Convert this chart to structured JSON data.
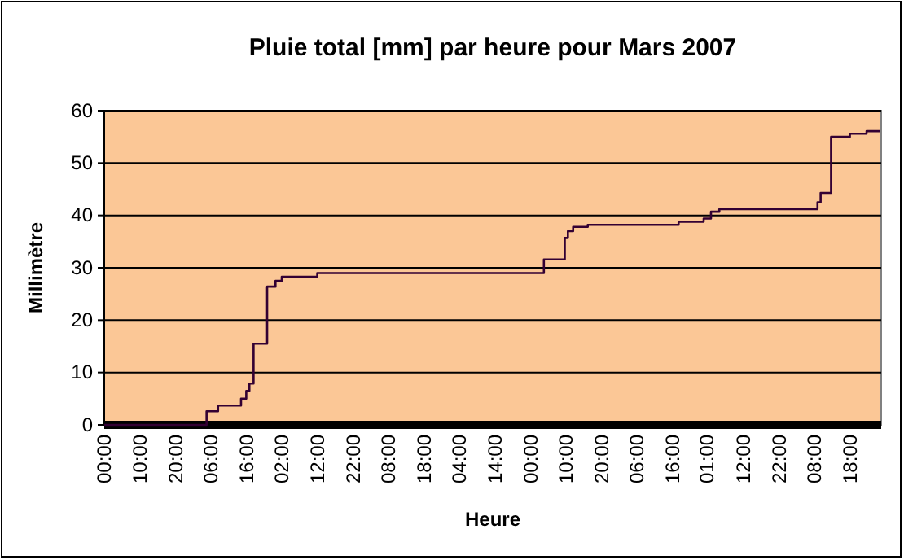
{
  "chart_data": {
    "type": "step",
    "title": "Pluie total [mm] par heure pour Mars 2007",
    "xlabel": "Heure",
    "ylabel": "Millimètre",
    "x": [
      "2007-03-01T00:00",
      "2007-03-05T02:00",
      "2007-03-05T13:00",
      "2007-03-06T11:00",
      "2007-03-06T16:00",
      "2007-03-06T19:00",
      "2007-03-06T23:00",
      "2007-03-07T12:00",
      "2007-03-07T20:00",
      "2007-03-08T02:00",
      "2007-03-09T12:00",
      "2007-03-18T13:00",
      "2007-03-19T09:00",
      "2007-03-19T12:00",
      "2007-03-19T17:00",
      "2007-03-20T07:00",
      "2007-03-23T22:00",
      "2007-03-24T22:00",
      "2007-03-25T05:00",
      "2007-03-25T13:00",
      "2007-03-29T11:00",
      "2007-03-29T14:00",
      "2007-03-30T00:00",
      "2007-03-30T18:00",
      "2007-03-31T10:00",
      "2007-03-31T23:00"
    ],
    "series": [
      {
        "color": "#330033",
        "values": [
          0,
          2.6,
          3.7,
          5,
          6.5,
          7.9,
          15.5,
          26.4,
          27.5,
          28.3,
          29,
          31.6,
          35.7,
          37,
          37.8,
          38.2,
          38.8,
          39.4,
          40.7,
          41.2,
          42.5,
          44.3,
          55,
          55.6,
          56.1,
          56.1
        ]
      }
    ],
    "xlim": [
      "2007-03-01T00:00",
      "2007-04-01T00:00"
    ],
    "xticks": [
      {
        "value": "2007-03-01T00:00",
        "label": "00:00"
      },
      {
        "value": "2007-03-02T10:00",
        "label": "10:00"
      },
      {
        "value": "2007-03-03T20:00",
        "label": "20:00"
      },
      {
        "value": "2007-03-05T06:00",
        "label": "06:00"
      },
      {
        "value": "2007-03-06T16:00",
        "label": "16:00"
      },
      {
        "value": "2007-03-08T02:00",
        "label": "02:00"
      },
      {
        "value": "2007-03-09T12:00",
        "label": "12:00"
      },
      {
        "value": "2007-03-10T22:00",
        "label": "22:00"
      },
      {
        "value": "2007-03-12T08:00",
        "label": "08:00"
      },
      {
        "value": "2007-03-13T18:00",
        "label": "18:00"
      },
      {
        "value": "2007-03-15T04:00",
        "label": "04:00"
      },
      {
        "value": "2007-03-16T14:00",
        "label": "14:00"
      },
      {
        "value": "2007-03-18T00:00",
        "label": "00:00"
      },
      {
        "value": "2007-03-19T10:00",
        "label": "10:00"
      },
      {
        "value": "2007-03-20T20:00",
        "label": "20:00"
      },
      {
        "value": "2007-03-22T06:00",
        "label": "06:00"
      },
      {
        "value": "2007-03-23T16:00",
        "label": "16:00"
      },
      {
        "value": "2007-03-25T01:00",
        "label": "01:00"
      },
      {
        "value": "2007-03-26T12:00",
        "label": "12:00"
      },
      {
        "value": "2007-03-27T22:00",
        "label": "22:00"
      },
      {
        "value": "2007-03-29T08:00",
        "label": "08:00"
      },
      {
        "value": "2007-03-30T18:00",
        "label": "18:00"
      }
    ],
    "ylim": [
      0,
      60
    ],
    "yticks": [
      0,
      10,
      20,
      30,
      40,
      50,
      60
    ],
    "grid": "y"
  }
}
